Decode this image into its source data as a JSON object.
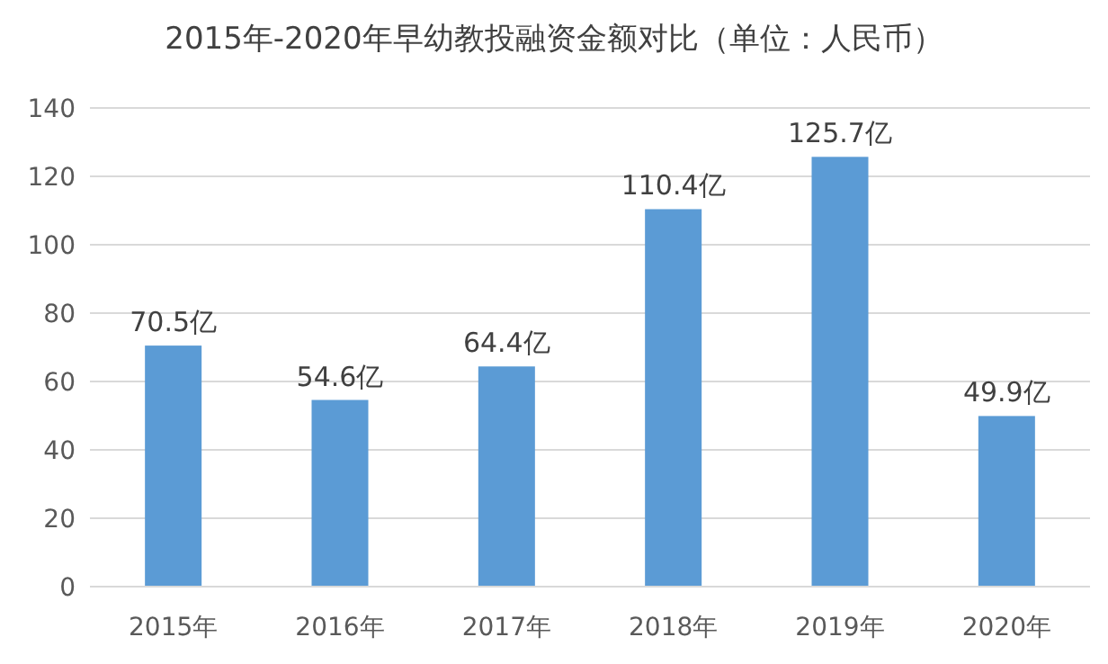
{
  "chart_data": {
    "type": "bar",
    "title": "2015年-2020年早幼教投融资金额对比（单位：人民币）",
    "categories": [
      "2015年",
      "2016年",
      "2017年",
      "2018年",
      "2019年",
      "2020年"
    ],
    "values": [
      70.5,
      54.6,
      64.4,
      110.4,
      125.7,
      49.9
    ],
    "value_labels": [
      "70.5亿",
      "54.6亿",
      "64.4亿",
      "110.4亿",
      "125.7亿",
      "49.9亿"
    ],
    "color": "#5b9bd5",
    "ylim": [
      0,
      140
    ],
    "yticks": [
      0,
      20,
      40,
      60,
      80,
      100,
      120,
      140
    ],
    "grid": "y"
  }
}
